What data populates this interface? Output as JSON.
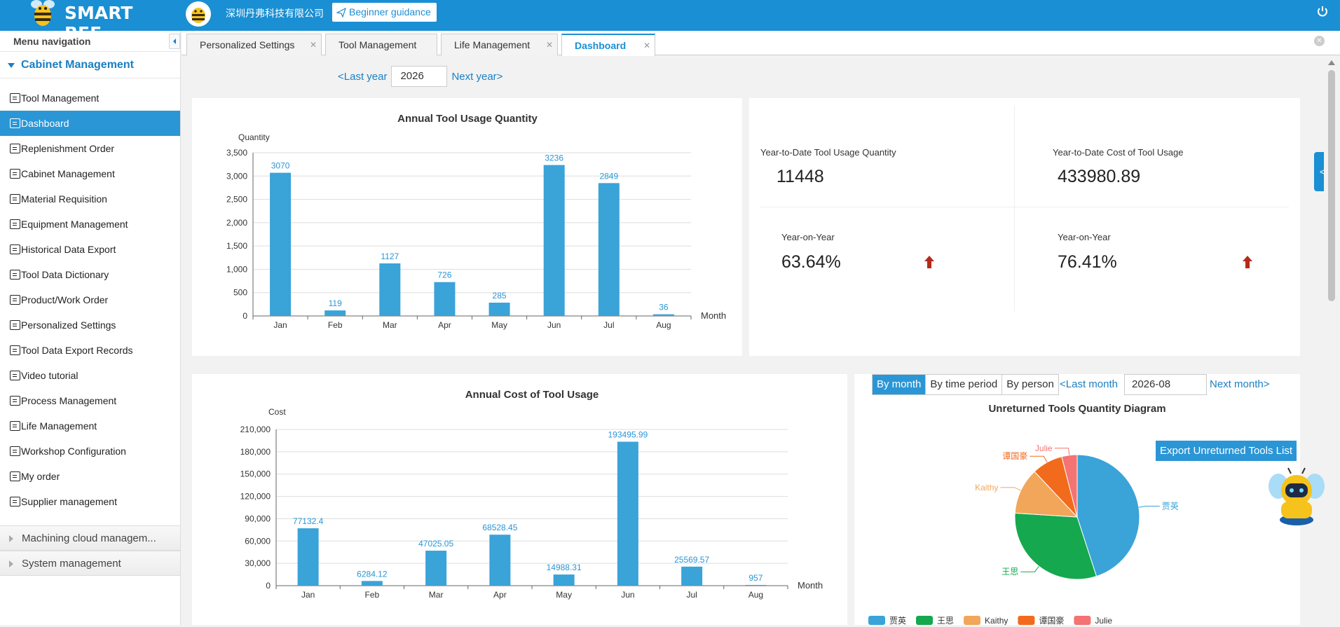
{
  "header": {
    "brand": "SMART BEE",
    "company": "深圳丹弗科技有限公司",
    "guide_label": "Beginner guidance"
  },
  "sidebar": {
    "title": "Menu navigation",
    "section": "Cabinet Management",
    "items": [
      {
        "label": "Tool Management",
        "icon": "tool-icon"
      },
      {
        "label": "Dashboard",
        "icon": "dashboard-icon",
        "active": true
      },
      {
        "label": "Replenishment Order",
        "icon": "order-icon"
      },
      {
        "label": "Cabinet Management",
        "icon": "cabinet-icon"
      },
      {
        "label": "Material Requisition",
        "icon": "requisition-icon"
      },
      {
        "label": "Equipment Management",
        "icon": "equipment-icon"
      },
      {
        "label": "Historical Data Export",
        "icon": "export-icon"
      },
      {
        "label": "Tool Data Dictionary",
        "icon": "dictionary-icon"
      },
      {
        "label": "Product/Work Order",
        "icon": "work-order-icon"
      },
      {
        "label": "Personalized Settings",
        "icon": "settings-icon"
      },
      {
        "label": "Tool Data Export Records",
        "icon": "records-icon"
      },
      {
        "label": "Video tutorial",
        "icon": "video-icon"
      },
      {
        "label": "Process Management",
        "icon": "process-icon"
      },
      {
        "label": "Life Management",
        "icon": "life-icon"
      },
      {
        "label": "Workshop Configuration",
        "icon": "workshop-icon"
      },
      {
        "label": "My order",
        "icon": "my-order-icon"
      },
      {
        "label": "Supplier management",
        "icon": "supplier-icon"
      }
    ],
    "groups": [
      "Machining cloud managem...",
      "System management"
    ]
  },
  "tabs": [
    {
      "label": "Personalized Settings"
    },
    {
      "label": "Tool Management"
    },
    {
      "label": "Life Management"
    },
    {
      "label": "Dashboard",
      "active": true
    }
  ],
  "year_nav": {
    "prev": "<Last year",
    "year": "2026",
    "next": "Next year>"
  },
  "stats": {
    "qty_label": "Year-to-Date Tool Usage Quantity",
    "qty_value": "11448",
    "cost_label": "Year-to-Date Cost of Tool Usage",
    "cost_value": "433980.89",
    "yoy_label": "Year-on-Year",
    "qty_yoy": "63.64%",
    "cost_yoy": "76.41%"
  },
  "pie_controls": {
    "modes": [
      "By month",
      "By time period",
      "By person"
    ],
    "prev": "<Last month",
    "month": "2026-08",
    "next": "Next month>",
    "export_label": "Export Unreturned Tools List"
  },
  "chart_data": [
    {
      "type": "bar",
      "title": "Annual Tool Usage Quantity",
      "ylabel": "Quantity",
      "xlabel": "Month",
      "categories": [
        "Jan",
        "Feb",
        "Mar",
        "Apr",
        "May",
        "Jun",
        "Jul",
        "Aug"
      ],
      "values": [
        3070,
        119,
        1127,
        726,
        285,
        3236,
        2849,
        36
      ],
      "value_labels": [
        "3070",
        "119",
        "1127",
        "726",
        "285",
        "3236",
        "2849",
        "36"
      ],
      "ylim": [
        0,
        3500
      ],
      "yticks": [
        0,
        500,
        1000,
        1500,
        2000,
        2500,
        3000,
        3500
      ],
      "ytick_labels": [
        "0",
        "500",
        "1,000",
        "1,500",
        "2,000",
        "2,500",
        "3,000",
        "3,500"
      ],
      "color": "#3aa3d8",
      "grid": true
    },
    {
      "type": "bar",
      "title": "Annual Cost of Tool Usage",
      "ylabel": "Cost",
      "xlabel": "Month",
      "categories": [
        "Jan",
        "Feb",
        "Mar",
        "Apr",
        "May",
        "Jun",
        "Jul",
        "Aug"
      ],
      "values": [
        77132.4,
        6284.12,
        47025.05,
        68528.45,
        14988.31,
        193495.99,
        25569.57,
        957
      ],
      "value_labels": [
        "77132.4",
        "6284.12",
        "47025.05",
        "68528.45",
        "14988.31",
        "193495.99",
        "25569.57",
        "957"
      ],
      "ylim": [
        0,
        210000
      ],
      "yticks": [
        0,
        30000,
        60000,
        90000,
        120000,
        150000,
        180000,
        210000
      ],
      "ytick_labels": [
        "0",
        "30,000",
        "60,000",
        "90,000",
        "120,000",
        "150,000",
        "180,000",
        "210,000"
      ],
      "color": "#3aa3d8",
      "grid": true
    },
    {
      "type": "pie",
      "title": "Unreturned Tools Quantity Diagram",
      "slices": [
        {
          "name": "贾英",
          "value": 45,
          "color": "#3aa3d8"
        },
        {
          "name": "王思",
          "value": 31,
          "color": "#15a84e"
        },
        {
          "name": "Kaithy",
          "value": 12,
          "color": "#f2a65a"
        },
        {
          "name": "谭国豪",
          "value": 8,
          "color": "#f26b1d"
        },
        {
          "name": "Julie",
          "value": 4,
          "color": "#f47373"
        }
      ],
      "legend": "bottom"
    }
  ]
}
